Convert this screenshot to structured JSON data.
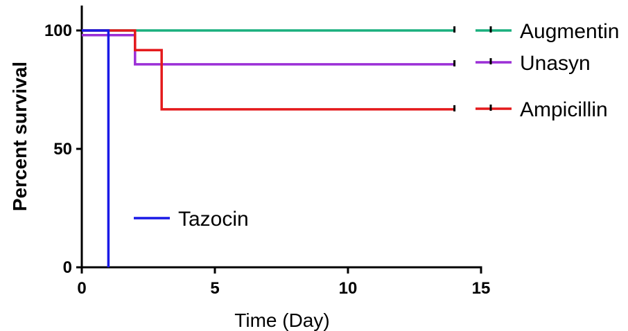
{
  "chart_data": {
    "type": "line",
    "subtype": "kaplan-meier survival (step)",
    "xlabel": "Time (Day)",
    "ylabel": "Percent survival",
    "xlim": [
      0,
      15
    ],
    "ylim": [
      0,
      100
    ],
    "x_ticks": [
      "0",
      "5",
      "10",
      "15"
    ],
    "y_ticks": [
      "0",
      "50",
      "100"
    ],
    "grid": false,
    "series": [
      {
        "name": "Augmentin",
        "color": "#1aaf7e",
        "steps": [
          [
            0,
            100
          ],
          [
            14,
            100
          ]
        ],
        "censored_at": [
          14
        ]
      },
      {
        "name": "Unasyn",
        "color": "#9b2fd6",
        "steps": [
          [
            0,
            98
          ],
          [
            2,
            98
          ],
          [
            2,
            85.7
          ],
          [
            14,
            85.7
          ]
        ],
        "censored_at": [
          14
        ]
      },
      {
        "name": "Ampicillin",
        "color": "#e41a1c",
        "steps": [
          [
            0,
            100
          ],
          [
            2,
            100
          ],
          [
            2,
            91.7
          ],
          [
            3,
            91.7
          ],
          [
            3,
            66.7
          ],
          [
            14,
            66.7
          ]
        ],
        "censored_at": [
          14
        ]
      },
      {
        "name": "Tazocin",
        "color": "#1919e6",
        "steps": [
          [
            0,
            100
          ],
          [
            1,
            100
          ],
          [
            1,
            0
          ]
        ],
        "censored_at": []
      }
    ]
  }
}
